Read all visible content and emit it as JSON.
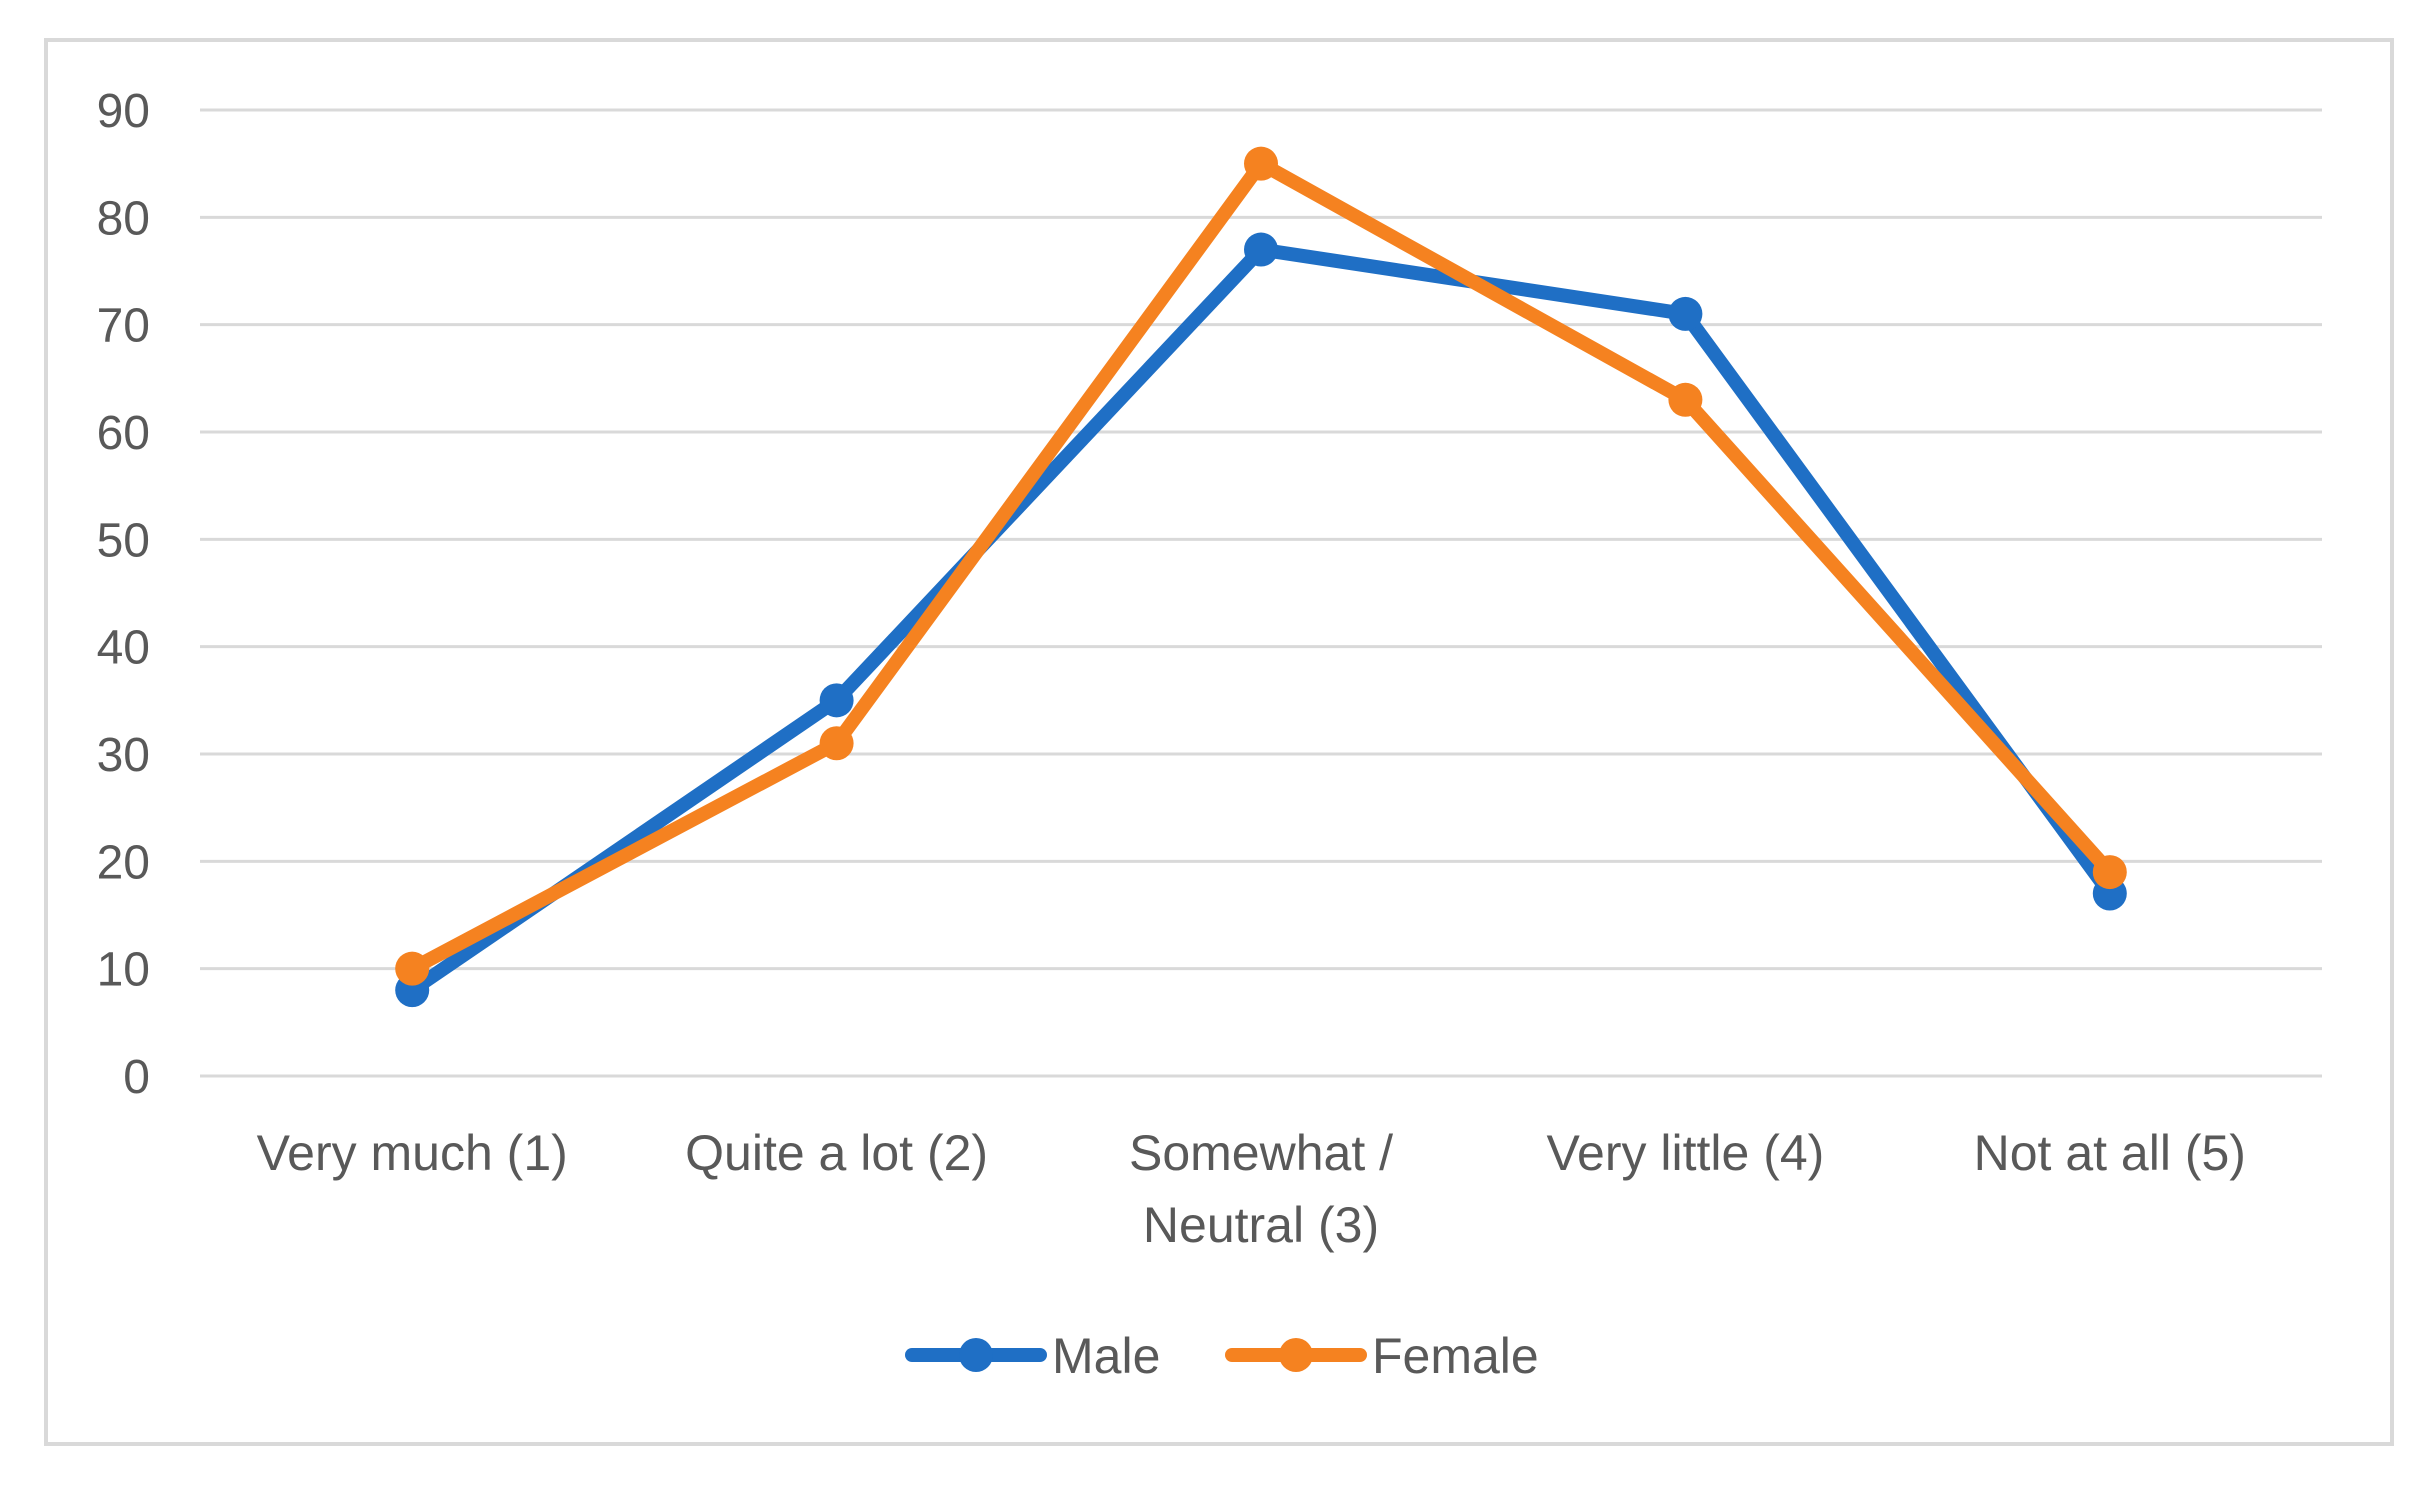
{
  "chart_data": {
    "type": "line",
    "title": "",
    "xlabel": "",
    "ylabel": "",
    "categories": [
      [
        "Very much (1)"
      ],
      [
        "Quite a lot (2)"
      ],
      [
        "Somewhat /",
        "Neutral (3)"
      ],
      [
        "Very little (4)"
      ],
      [
        "Not at all (5)"
      ]
    ],
    "ylim": [
      0,
      90
    ],
    "yticks": [
      0,
      10,
      20,
      30,
      40,
      50,
      60,
      70,
      80,
      90
    ],
    "grid": true,
    "legend": "bottom",
    "series": [
      {
        "name": "Male",
        "color": "#1f6fc5",
        "values": [
          8,
          35,
          77,
          71,
          17
        ]
      },
      {
        "name": "Female",
        "color": "#f58220",
        "values": [
          10,
          31,
          85,
          63,
          19
        ]
      }
    ]
  }
}
